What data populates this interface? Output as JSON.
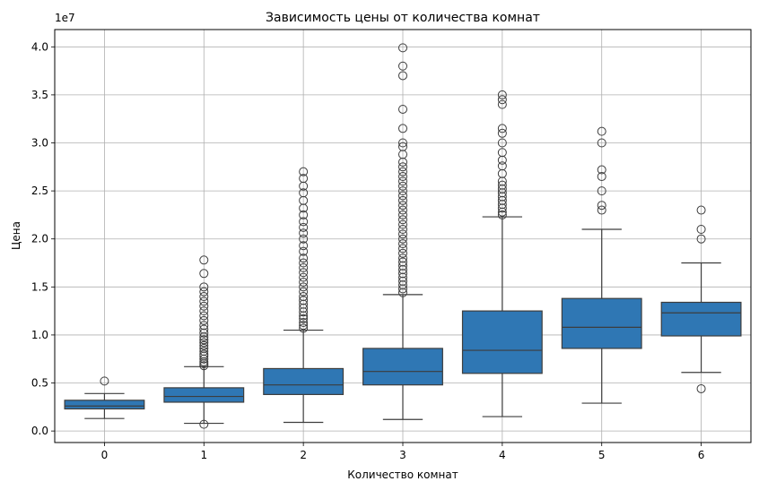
{
  "chart_data": {
    "type": "box",
    "title": "Зависимость цены от количества комнат",
    "xlabel": "Количество комнат",
    "ylabel": "Цена",
    "scale_label": "1e7",
    "categories": [
      "0",
      "1",
      "2",
      "3",
      "4",
      "5",
      "6"
    ],
    "y_ticks": [
      0.0,
      0.5,
      1.0,
      1.5,
      2.0,
      2.5,
      3.0,
      3.5,
      4.0
    ],
    "y_tick_labels": [
      "0.0",
      "0.5",
      "1.0",
      "1.5",
      "2.0",
      "2.5",
      "3.0",
      "3.5",
      "4.0"
    ],
    "ylim": [
      -0.12,
      4.18
    ],
    "grid": true,
    "box_color": "#2f77b4",
    "boxes": [
      {
        "category": "0",
        "q1": 0.23,
        "median": 0.26,
        "q3": 0.32,
        "whisker_low": 0.13,
        "whisker_high": 0.39,
        "outliers": [
          0.52
        ]
      },
      {
        "category": "1",
        "q1": 0.3,
        "median": 0.36,
        "q3": 0.45,
        "whisker_low": 0.08,
        "whisker_high": 0.67,
        "outliers": [
          0.07,
          0.68,
          0.7,
          0.72,
          0.75,
          0.78,
          0.8,
          0.83,
          0.86,
          0.89,
          0.92,
          0.95,
          0.98,
          1.02,
          1.06,
          1.1,
          1.15,
          1.2,
          1.25,
          1.3,
          1.35,
          1.4,
          1.45,
          1.5,
          1.64,
          1.78
        ]
      },
      {
        "category": "2",
        "q1": 0.38,
        "median": 0.48,
        "q3": 0.65,
        "whisker_low": 0.09,
        "whisker_high": 1.05,
        "outliers": [
          1.07,
          1.1,
          1.13,
          1.17,
          1.2,
          1.24,
          1.28,
          1.32,
          1.36,
          1.4,
          1.45,
          1.5,
          1.55,
          1.6,
          1.65,
          1.7,
          1.75,
          1.8,
          1.87,
          1.93,
          2.0,
          2.06,
          2.12,
          2.18,
          2.25,
          2.32,
          2.4,
          2.48,
          2.55,
          2.63,
          2.7
        ]
      },
      {
        "category": "3",
        "q1": 0.48,
        "median": 0.62,
        "q3": 0.86,
        "whisker_low": 0.12,
        "whisker_high": 1.42,
        "outliers": [
          1.44,
          1.48,
          1.52,
          1.56,
          1.6,
          1.64,
          1.68,
          1.72,
          1.76,
          1.8,
          1.85,
          1.9,
          1.95,
          2.0,
          2.05,
          2.1,
          2.15,
          2.2,
          2.25,
          2.3,
          2.35,
          2.4,
          2.45,
          2.5,
          2.55,
          2.6,
          2.65,
          2.7,
          2.75,
          2.8,
          2.88,
          2.96,
          3.0,
          3.15,
          3.35,
          3.7,
          3.8,
          3.99
        ]
      },
      {
        "category": "4",
        "q1": 0.6,
        "median": 0.84,
        "q3": 1.25,
        "whisker_low": 0.15,
        "whisker_high": 2.23,
        "outliers": [
          2.25,
          2.28,
          2.32,
          2.36,
          2.4,
          2.44,
          2.48,
          2.52,
          2.56,
          2.6,
          2.68,
          2.76,
          2.82,
          2.9,
          3.0,
          3.1,
          3.15,
          3.4,
          3.45,
          3.5
        ]
      },
      {
        "category": "5",
        "q1": 0.86,
        "median": 1.08,
        "q3": 1.38,
        "whisker_low": 0.29,
        "whisker_high": 2.1,
        "outliers": [
          2.3,
          2.35,
          2.5,
          2.65,
          2.72,
          3.0,
          3.12
        ]
      },
      {
        "category": "6",
        "q1": 0.99,
        "median": 1.23,
        "q3": 1.34,
        "whisker_low": 0.61,
        "whisker_high": 1.75,
        "outliers": [
          0.44,
          2.0,
          2.1,
          2.3
        ]
      }
    ]
  }
}
